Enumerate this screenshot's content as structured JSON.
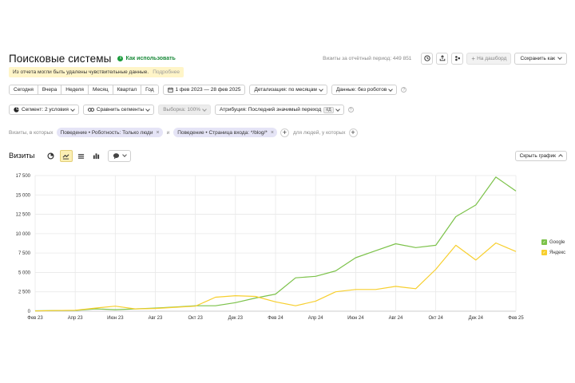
{
  "header": {
    "title": "Поисковые системы",
    "how_to": "Как использовать",
    "visits_total": "Визиты за отчётный период: 449 851",
    "dashboard_label": "На дашборд",
    "save_label": "Сохранить как"
  },
  "notice": {
    "text": "Из отчета могли быть удалены чувствительные данные.",
    "more": "Подробнее"
  },
  "toolbar": {
    "periods": [
      "Сегодня",
      "Вчера",
      "Неделя",
      "Месяц",
      "Квартал",
      "Год"
    ],
    "date_range": "1 фев 2023 — 28 фев 2025",
    "detail": "Детализация: по месяцам",
    "data": "Данные: без роботов",
    "segment": "Сегмент: 2 условия",
    "compare": "Сравнить сегменты",
    "sample": "Выборка: 100%",
    "attribution": "Атрибуция: Последний значимый переход",
    "attribution_kd": "КД"
  },
  "filters": {
    "prefix": "Визиты, в которых",
    "chip1": "Поведение • Роботность: Только люди",
    "conj": "и",
    "chip2": "Поведение • Страница входа: */blog/*",
    "suffix": "для людей, у которых"
  },
  "visits": {
    "label": "Визиты",
    "hide_chart": "Скрыть график"
  },
  "colors": {
    "google": "#7cc24a",
    "yandex": "#f7cf2e"
  },
  "chart_data": {
    "type": "line",
    "x": [
      "Фев 23",
      "Мар 23",
      "Апр 23",
      "Май 23",
      "Июн 23",
      "Июл 23",
      "Авг 23",
      "Сен 23",
      "Окт 23",
      "Ноя 23",
      "Дек 23",
      "Янв 24",
      "Фев 24",
      "Мар 24",
      "Апр 24",
      "Май 24",
      "Июн 24",
      "Июл 24",
      "Авг 24",
      "Сен 24",
      "Окт 24",
      "Ноя 24",
      "Дек 24",
      "Янв 25",
      "Фев 25"
    ],
    "x_tick_labels": [
      "Фев 23",
      "Апр 23",
      "Июн 23",
      "Авг 23",
      "Окт 23",
      "Дек 23",
      "Фев 24",
      "Апр 24",
      "Июн 24",
      "Авг 24",
      "Окт 24",
      "Дек 24",
      "Фев 25"
    ],
    "y_ticks": [
      "0",
      "2 500",
      "5 000",
      "7 500",
      "10 000",
      "12 500",
      "15 000",
      "17 500"
    ],
    "ylim": [
      0,
      17500
    ],
    "grid": true,
    "legend_position": "right",
    "series": [
      {
        "name": "Google",
        "values": [
          50,
          80,
          100,
          300,
          200,
          300,
          400,
          550,
          700,
          700,
          1100,
          1700,
          2200,
          4300,
          4500,
          5200,
          6900,
          7800,
          8700,
          8200,
          8500,
          12200,
          13700,
          17300,
          15500
        ]
      },
      {
        "name": "Яндекс",
        "values": [
          30,
          80,
          120,
          400,
          650,
          300,
          350,
          500,
          650,
          1800,
          2000,
          1900,
          1200,
          700,
          1300,
          2500,
          2800,
          2800,
          3200,
          2900,
          5400,
          8500,
          6600,
          8800,
          7700
        ]
      }
    ]
  }
}
